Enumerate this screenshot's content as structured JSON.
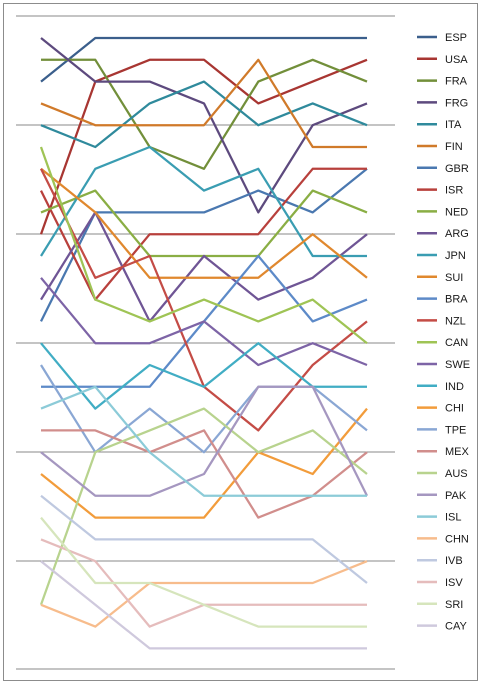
{
  "chart_data": {
    "type": "line",
    "title": "",
    "xlabel": "",
    "ylabel": "",
    "x": [
      1,
      2,
      3,
      4,
      5,
      6,
      7
    ],
    "ylim": [
      1,
      28
    ],
    "y_inverted": true,
    "grid": "horizontal",
    "legend_position": "right",
    "series": [
      {
        "name": "ESP",
        "color": "#3b5f8c",
        "values": [
          3,
          1,
          1,
          1,
          1,
          1,
          1
        ]
      },
      {
        "name": "USA",
        "color": "#a83632",
        "values": [
          10,
          3,
          2,
          2,
          4,
          3,
          2
        ]
      },
      {
        "name": "FRA",
        "color": "#728f3a",
        "values": [
          2,
          2,
          6,
          7,
          3,
          2,
          3
        ]
      },
      {
        "name": "FRG",
        "color": "#5d4a7e",
        "values": [
          1,
          3,
          3,
          4,
          9,
          5,
          4
        ]
      },
      {
        "name": "ITA",
        "color": "#2f8a9c",
        "values": [
          5,
          6,
          4,
          3,
          5,
          4,
          5
        ]
      },
      {
        "name": "FIN",
        "color": "#d07a2a",
        "values": [
          4,
          5,
          5,
          5,
          2,
          6,
          6
        ]
      },
      {
        "name": "GBR",
        "color": "#4a78b0",
        "values": [
          14,
          9,
          9,
          9,
          8,
          9,
          7
        ]
      },
      {
        "name": "ISR",
        "color": "#b8403c",
        "values": [
          8,
          13,
          10,
          10,
          10,
          7,
          7
        ]
      },
      {
        "name": "NED",
        "color": "#8aae44",
        "values": [
          9,
          8,
          11,
          11,
          11,
          8,
          9
        ]
      },
      {
        "name": "ARG",
        "color": "#6f5595",
        "values": [
          13,
          9,
          14,
          11,
          13,
          12,
          10
        ]
      },
      {
        "name": "JPN",
        "color": "#3a9db2",
        "values": [
          11,
          7,
          6,
          8,
          7,
          11,
          11
        ]
      },
      {
        "name": "SUI",
        "color": "#e0882e",
        "values": [
          7,
          9,
          12,
          12,
          12,
          10,
          12
        ]
      },
      {
        "name": "BRA",
        "color": "#5d8ac8",
        "values": [
          17,
          17,
          17,
          14,
          11,
          14,
          13
        ]
      },
      {
        "name": "NZL",
        "color": "#c44c46",
        "values": [
          7,
          12,
          11,
          17,
          19,
          16,
          14
        ]
      },
      {
        "name": "CAN",
        "color": "#9fc455",
        "values": [
          6,
          13,
          14,
          13,
          14,
          13,
          15
        ]
      },
      {
        "name": "SWE",
        "color": "#7d64a6",
        "values": [
          12,
          15,
          15,
          14,
          16,
          15,
          16
        ]
      },
      {
        "name": "IND",
        "color": "#41adc4",
        "values": [
          15,
          18,
          16,
          17,
          15,
          17,
          17
        ]
      },
      {
        "name": "CHI",
        "color": "#f29c3b",
        "values": [
          21,
          23,
          23,
          23,
          20,
          21,
          18
        ]
      },
      {
        "name": "TPE",
        "color": "#8aa7d4",
        "values": [
          16,
          20,
          18,
          20,
          17,
          17,
          19
        ]
      },
      {
        "name": "MEX",
        "color": "#d18e8c",
        "values": [
          19,
          19,
          20,
          19,
          23,
          22,
          20
        ]
      },
      {
        "name": "AUS",
        "color": "#b8d38e",
        "values": [
          27,
          20,
          19,
          18,
          20,
          19,
          21
        ]
      },
      {
        "name": "PAK",
        "color": "#a597c0",
        "values": [
          20,
          22,
          22,
          21,
          17,
          17,
          22
        ]
      },
      {
        "name": "ISL",
        "color": "#8ccbd8",
        "values": [
          18,
          17,
          20,
          22,
          22,
          22,
          22
        ]
      },
      {
        "name": "CHN",
        "color": "#f7bc8c",
        "values": [
          27,
          28,
          26,
          26,
          26,
          26,
          25
        ]
      },
      {
        "name": "IVB",
        "color": "#bfc9e0",
        "values": [
          22,
          24,
          24,
          24,
          24,
          24,
          26
        ]
      },
      {
        "name": "ISV",
        "color": "#e5bcbc",
        "values": [
          24,
          25,
          28,
          27,
          27,
          27,
          27
        ]
      },
      {
        "name": "SRI",
        "color": "#d6e5bc",
        "values": [
          23,
          26,
          26,
          27,
          28,
          28,
          28
        ]
      },
      {
        "name": "CAY",
        "color": "#cfc9dd",
        "values": [
          25,
          27,
          29,
          29,
          29,
          29,
          29
        ]
      }
    ]
  }
}
